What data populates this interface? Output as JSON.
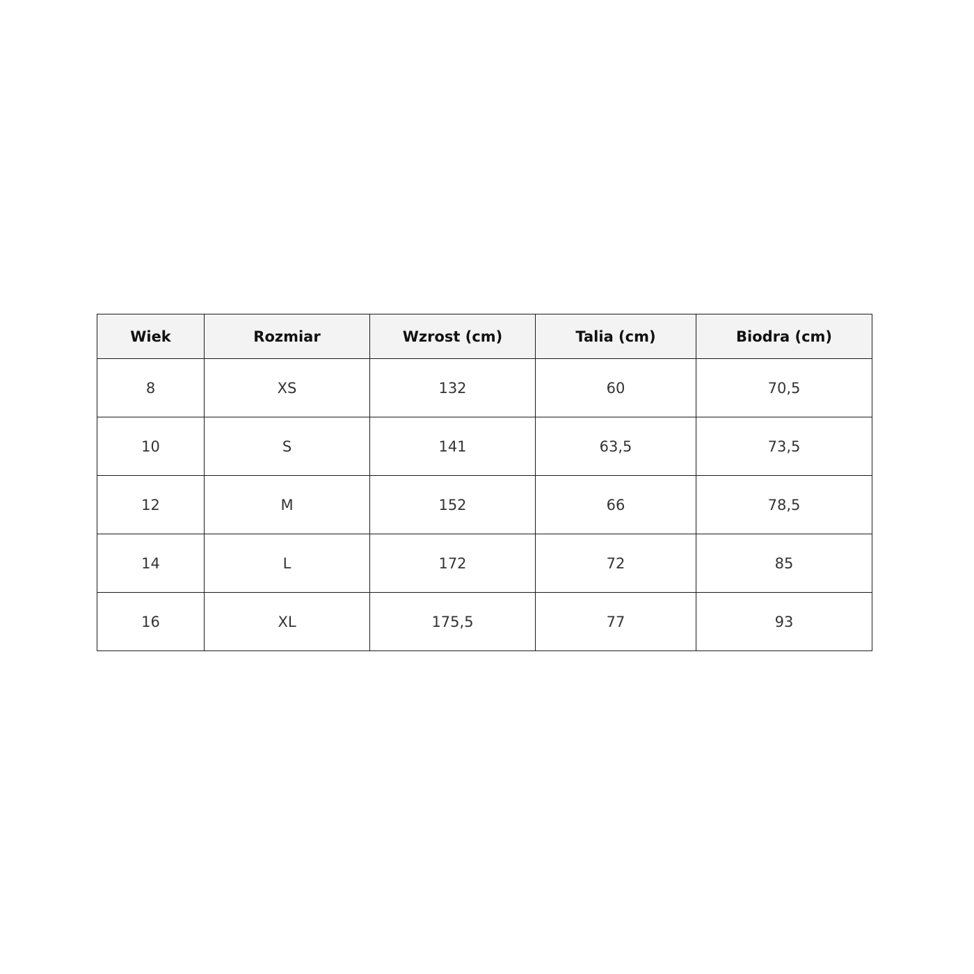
{
  "size_table": {
    "headers": [
      "Wiek",
      "Rozmiar",
      "Wzrost (cm)",
      "Talia (cm)",
      "Biodra (cm)"
    ],
    "rows": [
      [
        "8",
        "XS",
        "132",
        "60",
        "70,5"
      ],
      [
        "10",
        "S",
        "141",
        "63,5",
        "73,5"
      ],
      [
        "12",
        "M",
        "152",
        "66",
        "78,5"
      ],
      [
        "14",
        "L",
        "172",
        "72",
        "85"
      ],
      [
        "16",
        "XL",
        "175,5",
        "77",
        "93"
      ]
    ]
  }
}
